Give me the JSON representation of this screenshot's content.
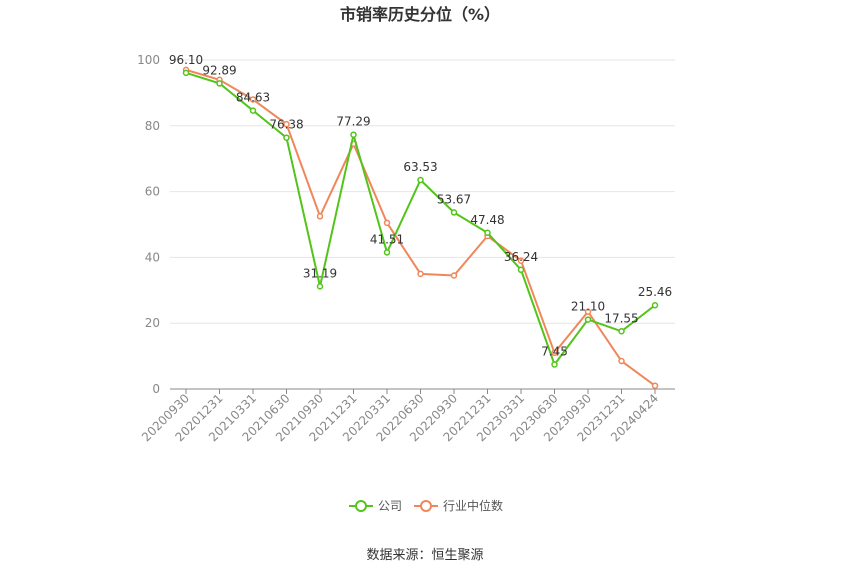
{
  "chart_data": {
    "type": "line",
    "title": "市销率历史分位（%）",
    "categories": [
      "20200930",
      "20201231",
      "20210331",
      "20210630",
      "20210930",
      "20211231",
      "20220331",
      "20220630",
      "20220930",
      "20221231",
      "20230331",
      "20230630",
      "20230930",
      "20231231",
      "20240424"
    ],
    "series": [
      {
        "name": "公司",
        "color": "#52c41a",
        "values": [
          96.1,
          92.89,
          84.63,
          76.38,
          31.19,
          77.29,
          41.51,
          63.53,
          53.67,
          47.48,
          36.24,
          7.45,
          21.1,
          17.55,
          25.46
        ],
        "labels": [
          "96.10",
          "92.89",
          "84.63",
          "76.38",
          "31.19",
          "77.29",
          "41.51",
          "63.53",
          "53.67",
          "47.48",
          "36.24",
          "7.45",
          "21.10",
          "17.55",
          "25.46"
        ]
      },
      {
        "name": "行业中位数",
        "color": "#f0875a",
        "values": [
          97.0,
          94.0,
          88.0,
          80.5,
          52.5,
          74.5,
          50.5,
          35.0,
          34.5,
          46.5,
          39.0,
          11.0,
          23.5,
          8.5,
          1.0
        ]
      }
    ],
    "yticks": [
      0,
      20,
      40,
      60,
      80,
      100
    ],
    "ylim": [
      0,
      100
    ],
    "grid": true,
    "legend_position": "bottom"
  },
  "source_text": "数据来源：恒生聚源"
}
